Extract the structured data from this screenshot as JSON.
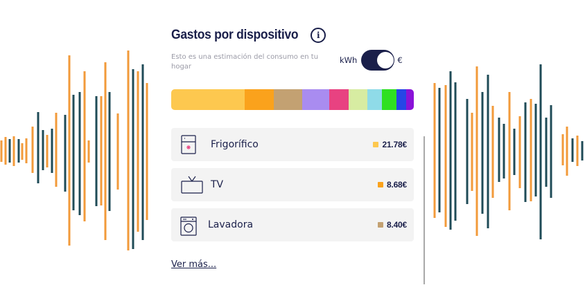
{
  "header": {
    "title": "Gastos por dispositivo",
    "info_icon": "info-icon",
    "subtitle": "Esto es una estimación del consumo en tu hogar"
  },
  "unit_toggle": {
    "left_label": "kWh",
    "right_label": "€",
    "selected": "€"
  },
  "consumption_bar": {
    "segments": [
      {
        "color": "#fdc84f",
        "weight": 30
      },
      {
        "color": "#faa21c",
        "weight": 12
      },
      {
        "color": "#c3a172",
        "weight": 11.5
      },
      {
        "color": "#a98cf0",
        "weight": 11
      },
      {
        "color": "#e84281",
        "weight": 8
      },
      {
        "color": "#d7eca2",
        "weight": 7.5
      },
      {
        "color": "#8fdbe8",
        "weight": 6
      },
      {
        "color": "#2fe021",
        "weight": 6
      },
      {
        "color": "#2646e6",
        "weight": 4
      },
      {
        "color": "#8a12d8",
        "weight": 3
      }
    ]
  },
  "devices": [
    {
      "name": "Frigorífico",
      "icon": "fridge-icon",
      "value": "21.78€",
      "color": "#fdc84f"
    },
    {
      "name": "TV",
      "icon": "tv-icon",
      "value": "8.68€",
      "color": "#faa21c"
    },
    {
      "name": "Lavadora",
      "icon": "washing-machine-icon",
      "value": "8.40€",
      "color": "#c3a172"
    }
  ],
  "more_link": "Ver más...",
  "colors": {
    "navy": "#1a1f4a",
    "wave_orange": "#f29a3a",
    "wave_teal": "#1f4b57"
  }
}
